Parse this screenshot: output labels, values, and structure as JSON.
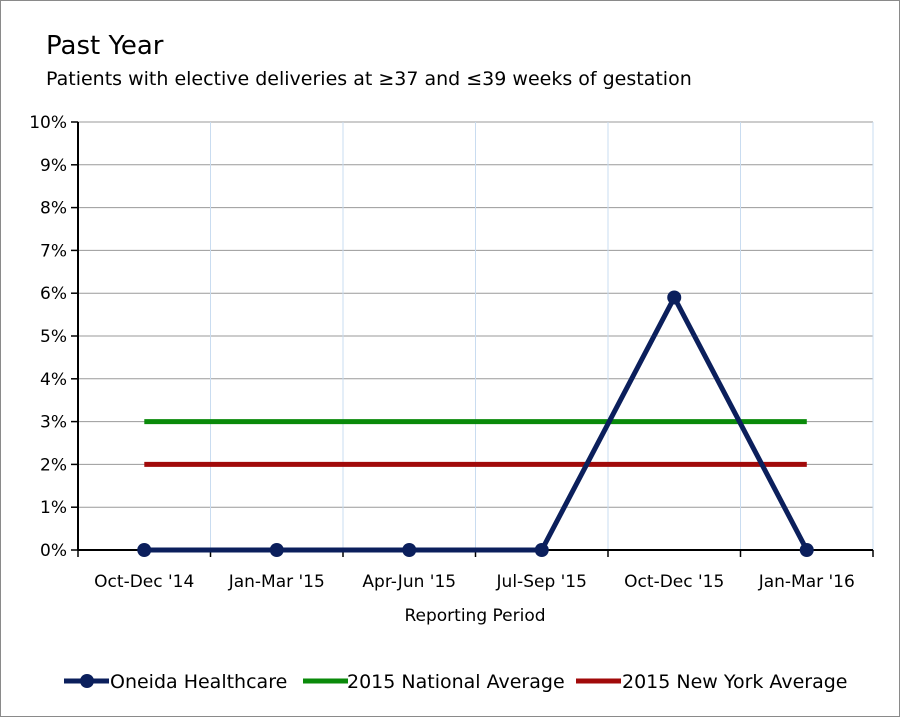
{
  "chart_data": {
    "type": "line",
    "title": "Past Year",
    "subtitle": "Patients with elective deliveries at ≥37 and ≤39 weeks of gestation",
    "xlabel": "Reporting Period",
    "ylabel": "",
    "categories": [
      "Oct-Dec '14",
      "Jan-Mar '15",
      "Apr-Jun '15",
      "Jul-Sep '15",
      "Oct-Dec '15",
      "Jan-Mar '16"
    ],
    "ylim": [
      0,
      10
    ],
    "yticks": [
      0,
      1,
      2,
      3,
      4,
      5,
      6,
      7,
      8,
      9,
      10
    ],
    "ytick_labels": [
      "0%",
      "1%",
      "2%",
      "3%",
      "4%",
      "5%",
      "6%",
      "7%",
      "8%",
      "9%",
      "10%"
    ],
    "grid": true,
    "legend_position": "bottom",
    "series": [
      {
        "name": "Oneida Healthcare",
        "color": "#0b1f5c",
        "markers": true,
        "values": [
          0,
          0,
          0,
          0,
          5.9,
          0
        ]
      },
      {
        "name": "2015 National Average",
        "color": "#0a8a0a",
        "markers": false,
        "values": [
          3,
          3,
          3,
          3,
          3,
          3
        ]
      },
      {
        "name": "2015 New York Average",
        "color": "#a10a0a",
        "markers": false,
        "values": [
          2,
          2,
          2,
          2,
          2,
          2
        ]
      }
    ]
  }
}
